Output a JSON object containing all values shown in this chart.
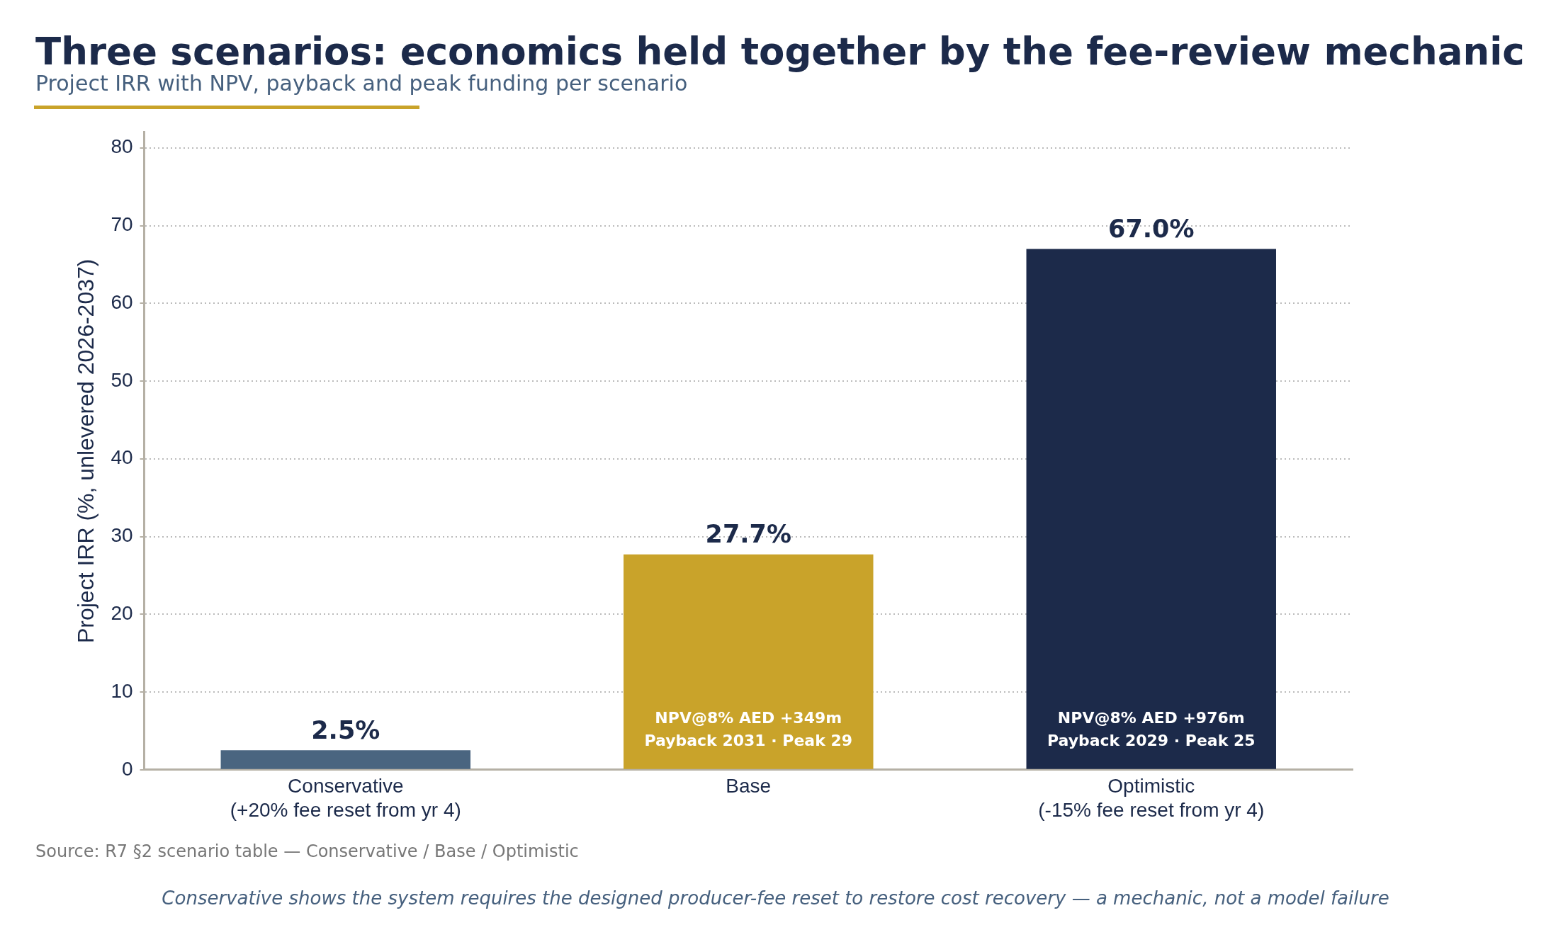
{
  "chart_data": {
    "type": "bar",
    "title": "Three scenarios: economics held together by the fee-review mechanic",
    "subtitle": "Project IRR with NPV, payback and peak funding per scenario",
    "ylabel": "Project IRR (%, unlevered 2026-2037)",
    "categories": [
      "Conservative\n(+20% fee reset from yr 4)",
      "Base",
      "Optimistic\n(-15% fee reset from yr 4)"
    ],
    "values": [
      2.5,
      27.7,
      67.0
    ],
    "colors": [
      "#4a6580",
      "#c9a32a",
      "#1c2a4a"
    ],
    "value_labels": [
      "2.5%",
      "27.7%",
      "67.0%"
    ],
    "ylim": [
      0,
      82
    ],
    "yticks": [
      0,
      10,
      20,
      30,
      40,
      50,
      60,
      70,
      80
    ],
    "grid": "y",
    "annotations": [
      "Source: R7 §2 scenario table — Conservative / Base / Optimistic",
      "Conservative shows the system requires the designed producer-fee reset to restore cost recovery — a mechanic, not a model failure",
      "NPV@8% AED +349m",
      "Payback 2031 · Peak 29",
      "NPV@8% AED +976m",
      "Payback 2029 · Peak 25"
    ]
  }
}
